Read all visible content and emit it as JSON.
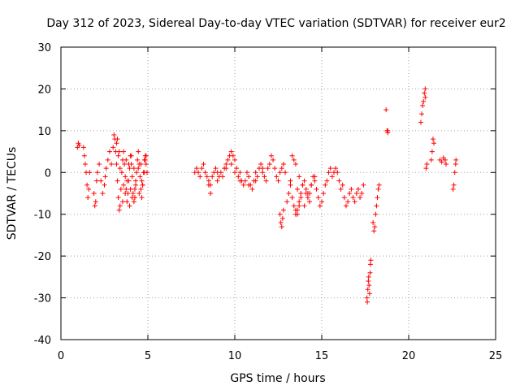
{
  "chart_data": {
    "type": "scatter",
    "title": "Day 312 of 2023, Sidereal Day-to-day VTEC variation (SDTVAR) for receiver eur2",
    "xlabel": "GPS time / hours",
    "ylabel": "SDTVAR / TECUs",
    "xlim": [
      0,
      25
    ],
    "ylim": [
      -40,
      30
    ],
    "xticks": [
      0,
      5,
      10,
      15,
      20,
      25
    ],
    "yticks": [
      -40,
      -30,
      -20,
      -10,
      0,
      10,
      20,
      30
    ],
    "xtick_labels": [
      "0",
      "5",
      "10",
      "15",
      "20",
      "25"
    ],
    "ytick_labels": [
      "-40",
      "-30",
      "-20",
      "-10",
      "0",
      "10",
      "20",
      "30"
    ],
    "grid": true,
    "marker": "plus",
    "color": "#ff0000",
    "series": [
      {
        "name": "SDTVAR",
        "x": [
          0.95,
          1.0,
          1.05,
          1.3,
          1.35,
          1.4,
          1.45,
          1.5,
          1.55,
          1.6,
          1.65,
          1.9,
          1.95,
          2.0,
          2.05,
          2.1,
          2.2,
          2.3,
          2.4,
          2.5,
          2.55,
          2.6,
          2.7,
          2.8,
          2.9,
          3.0,
          3.05,
          3.1,
          3.15,
          3.2,
          3.25,
          3.3,
          3.35,
          3.4,
          3.45,
          3.5,
          3.55,
          3.6,
          3.65,
          3.7,
          3.75,
          3.8,
          3.85,
          3.9,
          3.95,
          4.0,
          4.05,
          4.1,
          4.15,
          4.2,
          4.25,
          4.3,
          4.35,
          4.4,
          4.45,
          4.5,
          4.55,
          4.6,
          4.65,
          4.7,
          4.75,
          4.8,
          4.85,
          4.9,
          4.95,
          3.2,
          3.3,
          3.4,
          3.6,
          3.7,
          3.8,
          3.9,
          4.0,
          4.1,
          4.2,
          4.3,
          4.5,
          4.6,
          4.7,
          4.8,
          4.9,
          3.25,
          3.35,
          3.55,
          3.75,
          3.95,
          4.05,
          4.25,
          4.45,
          4.65,
          4.85,
          7.7,
          7.8,
          7.9,
          8.0,
          8.1,
          8.2,
          8.3,
          8.4,
          8.5,
          8.6,
          8.7,
          8.8,
          8.9,
          9.0,
          9.1,
          9.2,
          9.3,
          9.4,
          9.5,
          9.6,
          9.7,
          9.8,
          9.9,
          10.0,
          10.1,
          10.2,
          10.3,
          10.4,
          10.5,
          10.6,
          10.7,
          10.8,
          10.9,
          11.0,
          11.1,
          11.2,
          11.3,
          11.4,
          11.5,
          11.6,
          11.7,
          11.8,
          11.9,
          12.0,
          12.1,
          12.2,
          12.3,
          12.4,
          12.5,
          12.6,
          12.7,
          12.8,
          12.9,
          8.5,
          8.6,
          9.0,
          9.5,
          9.8,
          10.0,
          10.3,
          10.8,
          11.2,
          11.6,
          12.6,
          12.65,
          12.7,
          12.75,
          12.8,
          13.0,
          13.1,
          13.2,
          13.3,
          13.4,
          13.5,
          13.6,
          13.7,
          13.8,
          13.9,
          14.0,
          14.1,
          14.2,
          14.3,
          14.4,
          14.5,
          14.6,
          14.7,
          14.8,
          14.9,
          15.0,
          15.1,
          15.2,
          15.3,
          15.4,
          15.5,
          13.2,
          13.4,
          13.6,
          13.8,
          14.0,
          14.2,
          14.4,
          14.6,
          13.3,
          13.5,
          13.7,
          13.9,
          14.1,
          14.3,
          13.5,
          13.6,
          13.7,
          15.6,
          15.7,
          15.8,
          15.9,
          16.0,
          16.1,
          16.2,
          16.3,
          16.4,
          16.5,
          16.6,
          16.7,
          16.8,
          16.9,
          17.0,
          17.1,
          17.2,
          17.3,
          17.4,
          17.6,
          17.62,
          17.65,
          17.68,
          17.7,
          17.72,
          17.75,
          17.78,
          17.8,
          17.82,
          17.95,
          18.0,
          18.05,
          18.1,
          18.15,
          18.2,
          18.25,
          18.3,
          18.7,
          18.75,
          18.8,
          18.8,
          20.7,
          20.75,
          20.8,
          20.85,
          20.9,
          20.95,
          21.0,
          21.05,
          20.95,
          21.3,
          21.35,
          21.4,
          21.45,
          21.8,
          21.9,
          22.0,
          22.1,
          22.15,
          22.55,
          22.6,
          22.65,
          22.7,
          22.72
        ],
        "y": [
          6,
          7,
          6.5,
          6,
          4,
          2,
          0,
          -3,
          -6,
          -4,
          0,
          -5,
          -8,
          -7,
          -2,
          0,
          2,
          -2,
          -5,
          -3,
          -1,
          1,
          3,
          5,
          2,
          6,
          9,
          8,
          5,
          2,
          -2,
          -6,
          -9,
          -8,
          -4,
          0,
          3,
          5,
          2,
          -1,
          -4,
          -7,
          -5,
          -2,
          1,
          4,
          2,
          -1,
          -5,
          -7,
          -6,
          -3,
          0,
          3,
          5,
          2,
          -1,
          -4,
          -6,
          -3,
          0,
          3,
          4,
          2,
          0,
          7,
          4,
          1,
          -3,
          -5,
          -2,
          2,
          -4,
          -6,
          1,
          -2,
          -5,
          2,
          -3,
          0,
          4,
          8,
          5,
          -7,
          3,
          -8,
          4,
          -4,
          1,
          -2,
          3,
          0,
          1,
          0,
          -1,
          1,
          2,
          0,
          -1,
          -2,
          -3,
          -1,
          0,
          1,
          0,
          -1,
          0,
          -1,
          1,
          2,
          3,
          4,
          5,
          4,
          3,
          1,
          -1,
          0,
          -2,
          -3,
          -2,
          0,
          -1,
          -3,
          -4,
          -2,
          0,
          -1,
          1,
          2,
          0,
          -1,
          -2,
          1,
          2,
          4,
          3,
          1,
          -1,
          -2,
          0,
          1,
          2,
          0,
          -3,
          -5,
          -2,
          1,
          2,
          0,
          -2,
          -3,
          -2,
          1,
          -10,
          -12,
          -13,
          -11,
          -9,
          -7,
          -5,
          -3,
          -6,
          -8,
          -10,
          -9,
          -7,
          -5,
          -3,
          -2,
          -4,
          -6,
          -5,
          -3,
          -1,
          -2,
          -4,
          -6,
          -8,
          -7,
          -5,
          -3,
          -2,
          0,
          1,
          -2,
          3,
          -4,
          -6,
          -8,
          -5,
          -3,
          -1,
          4,
          2,
          -1,
          -3,
          -5,
          -7,
          -9,
          -10,
          -8,
          -1,
          0,
          1,
          0,
          -2,
          -4,
          -3,
          -6,
          -8,
          -7,
          -5,
          -4,
          -6,
          -7,
          -5,
          -4,
          -6,
          -5,
          -3,
          -30,
          -31,
          -28,
          -26,
          -25,
          -27,
          -29,
          -24,
          -22,
          -21,
          -12,
          -14,
          -13,
          -10,
          -8,
          -6,
          -4,
          -3,
          15,
          10,
          9.5,
          10,
          12,
          14,
          16,
          17,
          19,
          20,
          1,
          2,
          18,
          3,
          5,
          8,
          7,
          3,
          2.5,
          3.5,
          3,
          2,
          -4,
          -3,
          0,
          2,
          3
        ]
      }
    ]
  }
}
